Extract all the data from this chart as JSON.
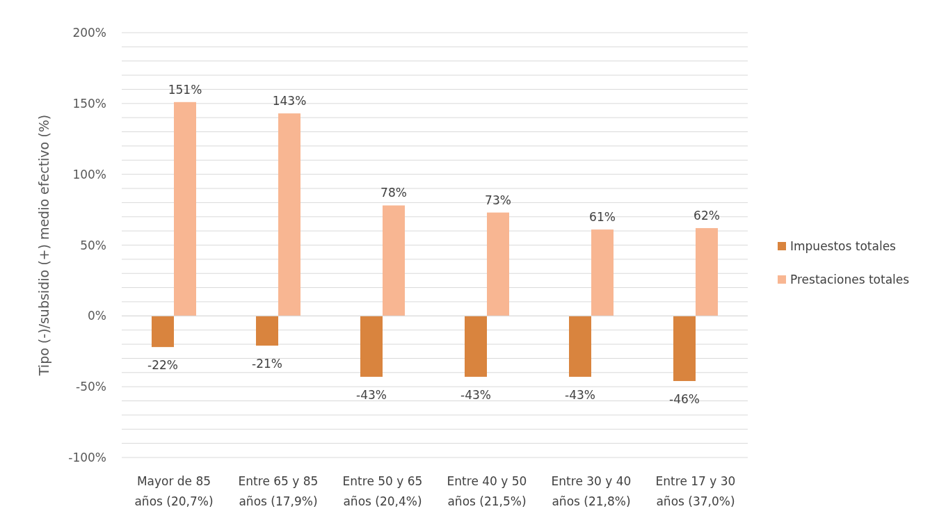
{
  "chart_data": {
    "type": "bar",
    "ylabel": "Tipo (-)/subsidio (+) medio efectivo (%)",
    "categories": [
      "Mayor de 85 años (20,7%)",
      "Entre 65 y 85 años (17,9%)",
      "Entre 50 y 65 años (20,4%)",
      "Entre 40 y 50 años (21,5%)",
      "Entre 30 y 40 años (21,8%)",
      "Entre 17 y 30 años (37,0%)"
    ],
    "series": [
      {
        "name": "Impuestos totales",
        "color": "#d9843e",
        "values": [
          -22,
          -21,
          -43,
          -43,
          -43,
          -46
        ],
        "value_labels": [
          "-22%",
          "-21%",
          "-43%",
          "-43%",
          "-43%",
          "-46%"
        ]
      },
      {
        "name": "Prestaciones totales",
        "color": "#f8b692",
        "values": [
          151,
          143,
          78,
          73,
          61,
          62
        ],
        "value_labels": [
          "151%",
          "143%",
          "78%",
          "73%",
          "61%",
          "62%"
        ]
      }
    ],
    "ylim": [
      -100,
      200
    ],
    "yticks": [
      {
        "value": -100,
        "label": "-100%"
      },
      {
        "value": -90,
        "label": null
      },
      {
        "value": -80,
        "label": null
      },
      {
        "value": -70,
        "label": null
      },
      {
        "value": -60,
        "label": null
      },
      {
        "value": -50,
        "label": "-50%"
      },
      {
        "value": -40,
        "label": null
      },
      {
        "value": -30,
        "label": null
      },
      {
        "value": -20,
        "label": null
      },
      {
        "value": -10,
        "label": null
      },
      {
        "value": 0,
        "label": "0%"
      },
      {
        "value": 10,
        "label": null
      },
      {
        "value": 20,
        "label": null
      },
      {
        "value": 30,
        "label": null
      },
      {
        "value": 40,
        "label": null
      },
      {
        "value": 50,
        "label": "50%"
      },
      {
        "value": 60,
        "label": null
      },
      {
        "value": 70,
        "label": null
      },
      {
        "value": 80,
        "label": null
      },
      {
        "value": 90,
        "label": null
      },
      {
        "value": 100,
        "label": "100%"
      },
      {
        "value": 110,
        "label": null
      },
      {
        "value": 120,
        "label": null
      },
      {
        "value": 130,
        "label": null
      },
      {
        "value": 140,
        "label": null
      },
      {
        "value": 150,
        "label": "150%"
      },
      {
        "value": 160,
        "label": null
      },
      {
        "value": 170,
        "label": null
      },
      {
        "value": 180,
        "label": null
      },
      {
        "value": 190,
        "label": null
      },
      {
        "value": 200,
        "label": "200%"
      }
    ],
    "grid": "y",
    "legend": "right"
  }
}
